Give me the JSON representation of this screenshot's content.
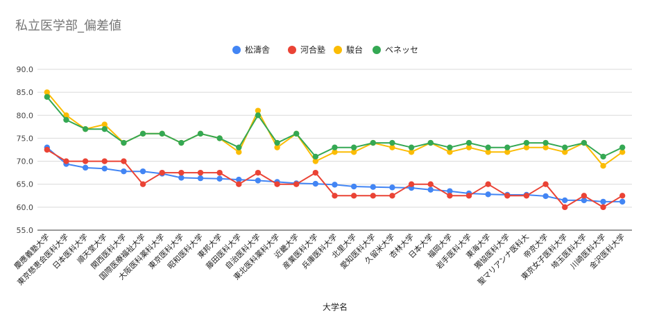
{
  "chart_data": {
    "type": "line",
    "title": "私立医学部_偏差値",
    "xlabel": "大学名",
    "ylabel": "",
    "ylim": [
      55,
      90
    ],
    "yticks": [
      "55.0",
      "60.0",
      "65.0",
      "70.0",
      "75.0",
      "80.0",
      "85.0",
      "90.0"
    ],
    "grid": true,
    "legend_position": "top",
    "categories": [
      "慶應義塾大学",
      "東京慈恵会医科大学",
      "日本医科大学",
      "順天堂大学",
      "関西医科大学",
      "国際医療福祉大学",
      "大阪医科薬科大学",
      "東京医科大学",
      "昭和医科大学",
      "東邦大学",
      "藤田医科大学",
      "自治医科大学",
      "東北医科薬科大学",
      "近畿大学",
      "産業医科大学",
      "兵庫医科大学",
      "北里大学",
      "愛知医科大学",
      "久留米大学",
      "杏林大学",
      "日本大学",
      "福岡大学",
      "岩手医科大学",
      "東海大学",
      "獨協医科大学",
      "聖マリアンナ医科大",
      "帝京大学",
      "東京女子医科大学",
      "埼玉医科大学",
      "川崎医科大学",
      "金沢医科大学"
    ],
    "series": [
      {
        "name": "松濤舎",
        "color": "#4285f4",
        "values": [
          73,
          69.4,
          68.6,
          68.4,
          67.8,
          67.8,
          67.3,
          66.4,
          66.3,
          66.2,
          66,
          65.8,
          65.5,
          65.2,
          65.1,
          64.9,
          64.5,
          64.4,
          64.3,
          64.2,
          63.8,
          63.5,
          63,
          62.8,
          62.7,
          62.7,
          62.4,
          61.5,
          61.5,
          61.2,
          61.2
        ]
      },
      {
        "name": "河合塾",
        "color": "#ea4335",
        "values": [
          72.5,
          70,
          70,
          70,
          70,
          65,
          67.5,
          67.5,
          67.5,
          67.5,
          65,
          67.5,
          65,
          65,
          67.5,
          62.5,
          62.5,
          62.5,
          62.5,
          65,
          65,
          62.5,
          62.5,
          65,
          62.5,
          62.5,
          65,
          60,
          62.5,
          60,
          62.5
        ]
      },
      {
        "name": "駿台",
        "color": "#fbbc04",
        "values": [
          85,
          80,
          77,
          78,
          74,
          76,
          76,
          74,
          76,
          75,
          72,
          81,
          73,
          76,
          70,
          72,
          72,
          74,
          73,
          72,
          74,
          72,
          73,
          72,
          72,
          73,
          73,
          72,
          74,
          69,
          72
        ]
      },
      {
        "name": "ベネッセ",
        "color": "#34a853",
        "values": [
          84,
          79,
          77,
          77,
          74,
          76,
          76,
          74,
          76,
          75,
          73,
          80,
          74,
          76,
          71,
          73,
          73,
          74,
          74,
          73,
          74,
          73,
          74,
          73,
          73,
          74,
          74,
          73,
          74,
          71,
          73
        ]
      }
    ]
  }
}
